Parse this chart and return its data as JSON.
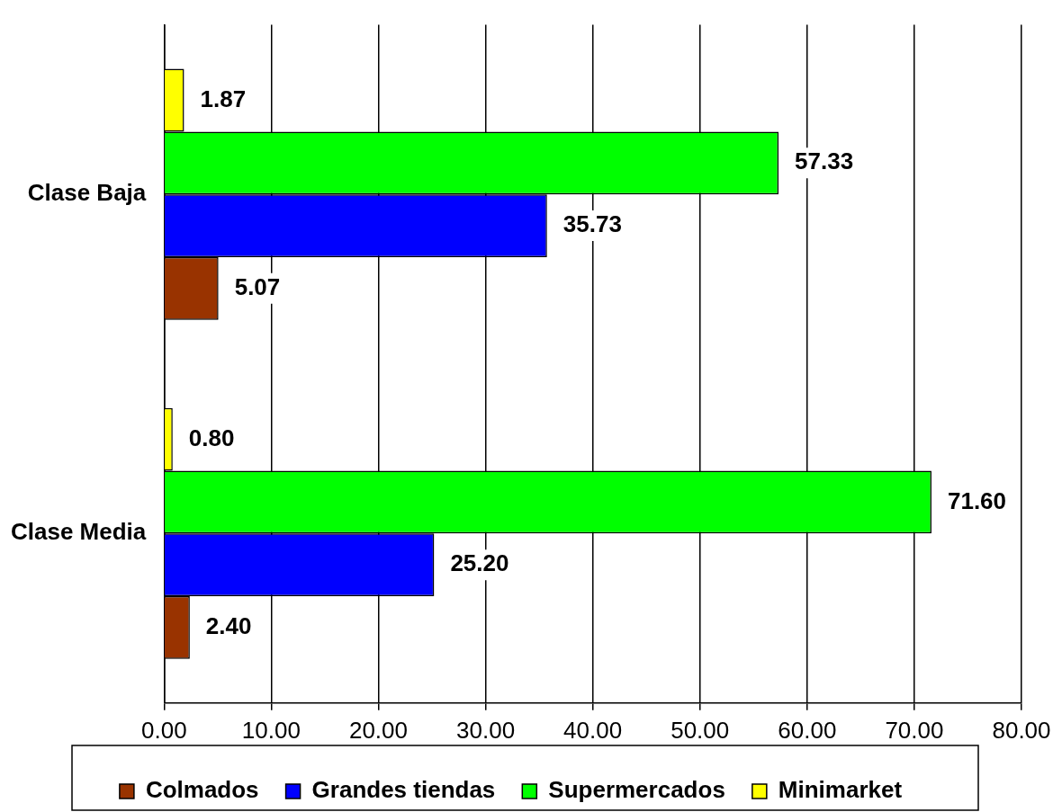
{
  "chart_data": {
    "type": "bar",
    "orientation": "horizontal",
    "categories": [
      "Clase Baja",
      "Clase Media"
    ],
    "series": [
      {
        "name": "Colmados",
        "color": "#993300",
        "values": [
          5.07,
          2.4
        ],
        "value_labels": [
          "5.07",
          "2.40"
        ]
      },
      {
        "name": "Grandes tiendas",
        "color": "#0000ff",
        "values": [
          35.73,
          25.2
        ],
        "value_labels": [
          "35.73",
          "25.20"
        ]
      },
      {
        "name": "Supermercados",
        "color": "#00ff00",
        "values": [
          57.33,
          71.6
        ],
        "value_labels": [
          "57.33",
          "71.60"
        ]
      },
      {
        "name": "Minimarket",
        "color": "#ffff00",
        "values": [
          1.87,
          0.8
        ],
        "value_labels": [
          "1.87",
          "0.80"
        ]
      }
    ],
    "xlim": [
      0,
      80
    ],
    "xticks": [
      {
        "value": 0,
        "label": "0.00"
      },
      {
        "value": 10,
        "label": "10.00"
      },
      {
        "value": 20,
        "label": "20.00"
      },
      {
        "value": 30,
        "label": "30.00"
      },
      {
        "value": 40,
        "label": "40.00"
      },
      {
        "value": 50,
        "label": "50.00"
      },
      {
        "value": 60,
        "label": "60.00"
      },
      {
        "value": 70,
        "label": "70.00"
      },
      {
        "value": 80,
        "label": "80.00"
      }
    ],
    "grid": "x",
    "legend": "bottom"
  }
}
